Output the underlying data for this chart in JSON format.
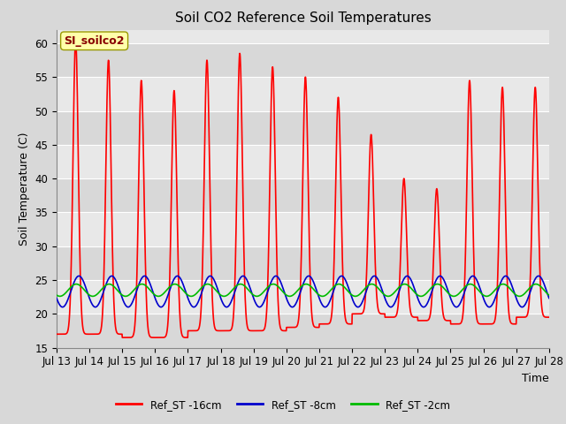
{
  "title": "Soil CO2 Reference Soil Temperatures",
  "ylabel": "Soil Temperature (C)",
  "xlabel": "Time",
  "ylim": [
    15,
    62
  ],
  "annotation_text": "SI_soilco2",
  "series": {
    "Ref_ST -16cm": {
      "color": "#ff0000",
      "linewidth": 1.2
    },
    "Ref_ST -8cm": {
      "color": "#0000cc",
      "linewidth": 1.2
    },
    "Ref_ST -2cm": {
      "color": "#00bb00",
      "linewidth": 1.2
    }
  },
  "xtick_labels": [
    "Jul 13",
    "Jul 14",
    "Jul 15",
    "Jul 16",
    "Jul 17",
    "Jul 18",
    "Jul 19",
    "Jul 20",
    "Jul 21",
    "Jul 22",
    "Jul 23",
    "Jul 24",
    "Jul 25",
    "Jul 26",
    "Jul 27",
    "Jul 28"
  ],
  "yticks": [
    15,
    20,
    25,
    30,
    35,
    40,
    45,
    50,
    55,
    60
  ],
  "background_color": "#d8d8d8",
  "plot_bg_color": "#e8e8e8",
  "grid_color": "#ffffff",
  "band_colors": [
    "#e0e0e0",
    "#d0d0d0"
  ],
  "annotation_box_color": "#ffffaa",
  "annotation_text_color": "#880000",
  "peak_vals_16cm": [
    60.5,
    57.5,
    54.5,
    53.0,
    57.5,
    58.5,
    56.5,
    55.0,
    52.0,
    46.5,
    40.0,
    38.5,
    54.5,
    53.5,
    53.5
  ],
  "trough_vals_16cm": [
    17.0,
    17.0,
    16.5,
    16.5,
    17.5,
    17.5,
    17.5,
    18.0,
    18.5,
    20.0,
    19.5,
    19.0,
    18.5,
    18.5,
    19.5
  ],
  "peak_phase": 0.58,
  "trough_phase": 0.08,
  "sharpness": 4.0
}
